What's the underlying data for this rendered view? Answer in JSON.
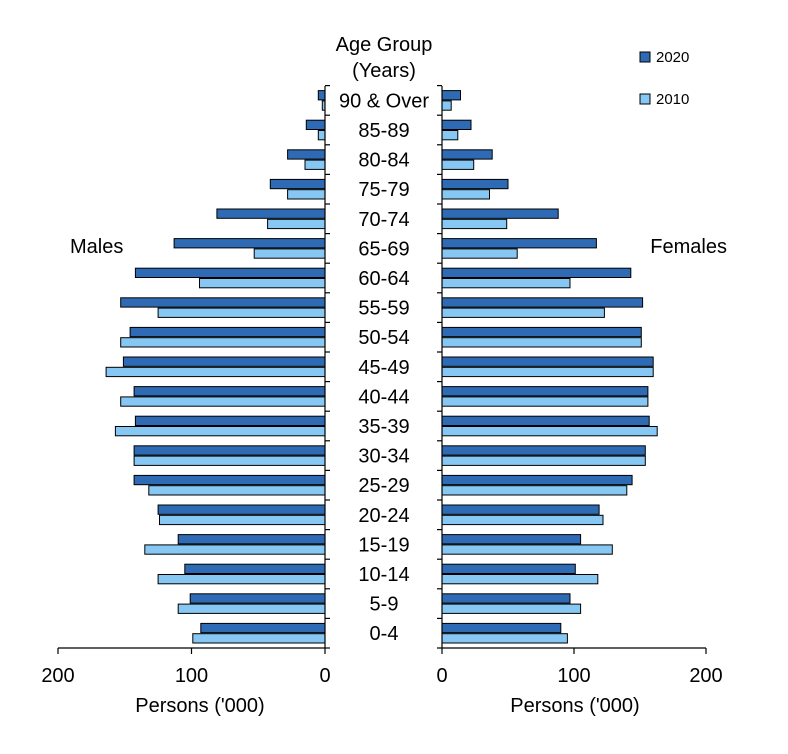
{
  "chart_data": {
    "type": "bar",
    "orientation": "horizontal",
    "layout": "population-pyramid",
    "center_title": [
      "Age Group",
      "(Years)"
    ],
    "categories": [
      "0-4",
      "5-9",
      "10-14",
      "15-19",
      "20-24",
      "25-29",
      "30-34",
      "35-39",
      "40-44",
      "45-49",
      "50-54",
      "55-59",
      "60-64",
      "65-69",
      "70-74",
      "75-79",
      "80-84",
      "85-89",
      "90 & Over"
    ],
    "colors": {
      "2020": "#2f6bb5",
      "2010": "#86c8f3"
    },
    "legend_position": "top-right",
    "males": {
      "label": "Males",
      "xlabel": "Persons ('000)",
      "xlim": [
        200,
        0
      ],
      "ticks": [
        "200",
        "100",
        "0"
      ],
      "series": [
        {
          "name": "2020",
          "values": [
            93,
            101,
            105,
            110,
            125,
            143,
            143,
            142,
            143,
            151,
            146,
            153,
            142,
            113,
            81,
            41,
            28,
            14,
            5
          ]
        },
        {
          "name": "2010",
          "values": [
            99,
            110,
            125,
            135,
            124,
            132,
            143,
            157,
            153,
            164,
            153,
            125,
            94,
            53,
            43,
            28,
            15,
            5,
            2
          ]
        }
      ]
    },
    "females": {
      "label": "Females",
      "xlabel": "Persons ('000)",
      "xlim": [
        0,
        200
      ],
      "ticks": [
        "0",
        "100",
        "200"
      ],
      "series": [
        {
          "name": "2020",
          "values": [
            90,
            97,
            101,
            105,
            119,
            144,
            154,
            157,
            156,
            160,
            151,
            152,
            143,
            117,
            88,
            50,
            38,
            22,
            14
          ]
        },
        {
          "name": "2010",
          "values": [
            95,
            105,
            118,
            129,
            122,
            140,
            154,
            163,
            156,
            160,
            151,
            123,
            97,
            57,
            49,
            36,
            24,
            12,
            7
          ]
        }
      ]
    }
  }
}
